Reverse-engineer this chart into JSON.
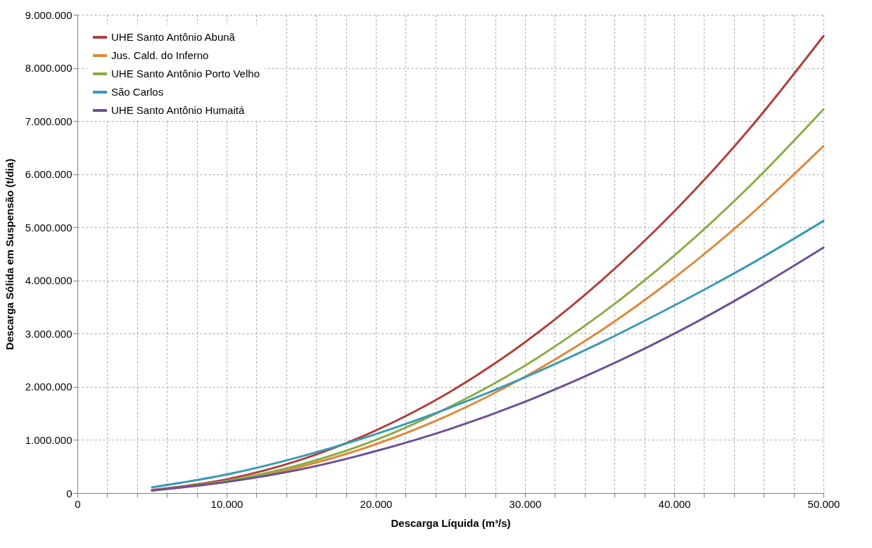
{
  "chart_data": {
    "type": "line",
    "xlabel": "Descarga Líquida (m³/s)",
    "ylabel": "Descarga Sólida em Suspensão (t/dia)",
    "x": [
      5000,
      10000,
      15000,
      20000,
      25000,
      30000,
      35000,
      40000,
      45000,
      50000
    ],
    "series": [
      {
        "name": "UHE Santo Antônio Abunã",
        "color": "#b0403c",
        "values": [
          60000,
          260000,
          630000,
          1180000,
          1910000,
          2840000,
          3970000,
          5300000,
          6840000,
          8600000
        ]
      },
      {
        "name": "Jus. Cald. do Inferno",
        "color": "#e0883a",
        "values": [
          50000,
          210000,
          500000,
          920000,
          1480000,
          2190000,
          3040000,
          4050000,
          5210000,
          6530000
        ]
      },
      {
        "name": "UHE Santo Antônio Porto Velho",
        "color": "#8aac46",
        "values": [
          50000,
          230000,
          540000,
          1000000,
          1630000,
          2400000,
          3350000,
          4470000,
          5760000,
          7220000
        ]
      },
      {
        "name": "São Carlos",
        "color": "#3a9ab4",
        "values": [
          110000,
          350000,
          690000,
          1110000,
          1610000,
          2180000,
          2820000,
          3530000,
          4290000,
          5120000
        ]
      },
      {
        "name": "UHE Santo Antônio Humaitá",
        "color": "#6d5096",
        "values": [
          50000,
          210000,
          450000,
          790000,
          1210000,
          1720000,
          2320000,
          3000000,
          3770000,
          4620000
        ]
      }
    ],
    "xlim": [
      0,
      50000
    ],
    "xticks": [
      {
        "value": 0,
        "label": "0"
      },
      {
        "value": 2000,
        "label": null
      },
      {
        "value": 4000,
        "label": null
      },
      {
        "value": 6000,
        "label": null
      },
      {
        "value": 8000,
        "label": null
      },
      {
        "value": 10000,
        "label": "10.000"
      },
      {
        "value": 12000,
        "label": null
      },
      {
        "value": 14000,
        "label": null
      },
      {
        "value": 16000,
        "label": null
      },
      {
        "value": 18000,
        "label": null
      },
      {
        "value": 20000,
        "label": "20.000"
      },
      {
        "value": 22000,
        "label": null
      },
      {
        "value": 24000,
        "label": null
      },
      {
        "value": 26000,
        "label": null
      },
      {
        "value": 28000,
        "label": null
      },
      {
        "value": 30000,
        "label": "30.000"
      },
      {
        "value": 32000,
        "label": null
      },
      {
        "value": 34000,
        "label": null
      },
      {
        "value": 36000,
        "label": null
      },
      {
        "value": 38000,
        "label": null
      },
      {
        "value": 40000,
        "label": "40.000"
      },
      {
        "value": 42000,
        "label": null
      },
      {
        "value": 44000,
        "label": null
      },
      {
        "value": 46000,
        "label": null
      },
      {
        "value": 48000,
        "label": null
      },
      {
        "value": 50000,
        "label": "50.000"
      }
    ],
    "ylim": [
      0,
      9000000
    ],
    "yticks": [
      {
        "value": 0,
        "label": "0"
      },
      {
        "value": 1000000,
        "label": "1.000.000"
      },
      {
        "value": 2000000,
        "label": "2.000.000"
      },
      {
        "value": 3000000,
        "label": "3.000.000"
      },
      {
        "value": 4000000,
        "label": "4.000.000"
      },
      {
        "value": 5000000,
        "label": "5.000.000"
      },
      {
        "value": 6000000,
        "label": "6.000.000"
      },
      {
        "value": 7000000,
        "label": "7.000.000"
      },
      {
        "value": 8000000,
        "label": "8.000.000"
      },
      {
        "value": 9000000,
        "label": "9.000.000"
      }
    ],
    "grid": true,
    "legend": "top left",
    "marker": "none",
    "line_style": "solid"
  }
}
